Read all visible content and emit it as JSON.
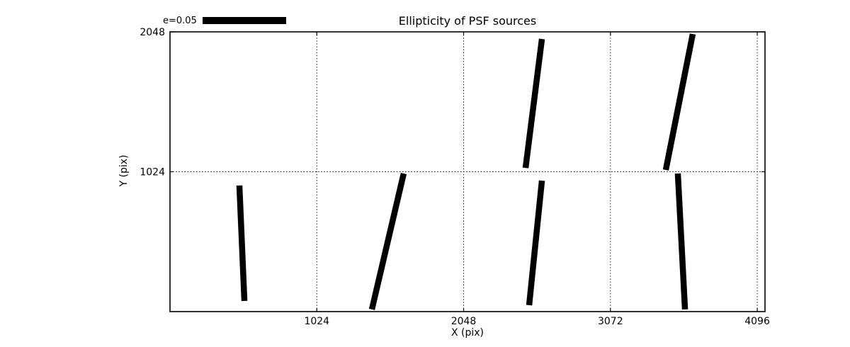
{
  "chart_data": {
    "type": "line",
    "subtype": "ellipticity-whisker-plot",
    "title": "Ellipticity of PSF sources",
    "xlabel": "X (pix)",
    "ylabel": "Y (pix)",
    "xlim": [
      0,
      4150
    ],
    "ylim": [
      0,
      2048
    ],
    "xticks": [
      1024,
      2048,
      3072,
      4096
    ],
    "yticks": [
      1024,
      2048
    ],
    "grid": true,
    "legend": {
      "label": "e=0.05",
      "position": "upper-left-outside"
    },
    "colors": {
      "segment": "#000000",
      "grid": "#000000",
      "background": "#ffffff"
    },
    "segments": [
      {
        "x1": 519,
        "y1": 78,
        "x2": 484,
        "y2": 923
      },
      {
        "x1": 1408,
        "y1": 16,
        "x2": 1630,
        "y2": 1011
      },
      {
        "x1": 2480,
        "y1": 1052,
        "x2": 2594,
        "y2": 1996
      },
      {
        "x1": 2505,
        "y1": 47,
        "x2": 2594,
        "y2": 959
      },
      {
        "x1": 3458,
        "y1": 1037,
        "x2": 3646,
        "y2": 2032
      },
      {
        "x1": 3592,
        "y1": 16,
        "x2": 3542,
        "y2": 1011
      }
    ]
  }
}
